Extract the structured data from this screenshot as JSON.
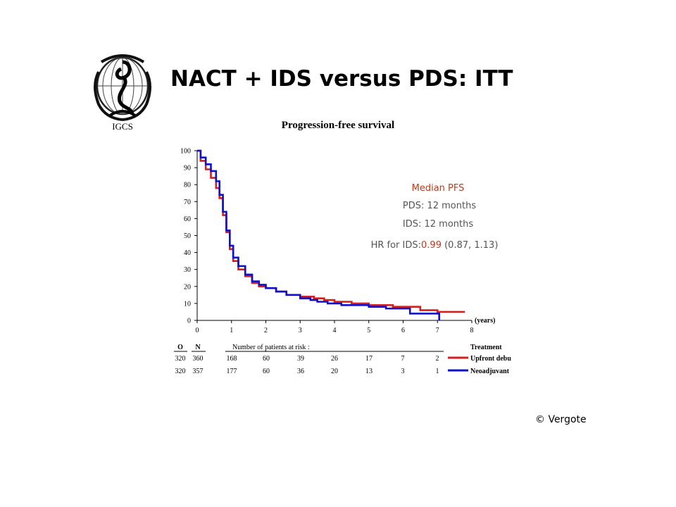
{
  "slide": {
    "title": "NACT + IDS versus PDS: ITT",
    "logo_text": "IGCS",
    "copyright": "© Vergote"
  },
  "colors": {
    "red": "#d41f1f",
    "blue": "#1010c8",
    "annotation_red": "#c0391b",
    "annotation_gray": "#555555"
  },
  "chart_data": {
    "type": "line",
    "title": "Progression-free survival",
    "xlabel": "(years)",
    "ylabel": "",
    "xlim": [
      0,
      8
    ],
    "ylim": [
      0,
      100
    ],
    "x_ticks": [
      "0",
      "1",
      "2",
      "3",
      "4",
      "5",
      "6",
      "7",
      "8"
    ],
    "y_ticks": [
      "0",
      "10",
      "20",
      "30",
      "40",
      "50",
      "60",
      "70",
      "80",
      "90",
      "100"
    ],
    "series": [
      {
        "name": "Upfront debu",
        "color": "#d41f1f",
        "points": [
          [
            0,
            100
          ],
          [
            0.1,
            94
          ],
          [
            0.25,
            89
          ],
          [
            0.4,
            84
          ],
          [
            0.55,
            78
          ],
          [
            0.65,
            72
          ],
          [
            0.75,
            62
          ],
          [
            0.85,
            52
          ],
          [
            0.95,
            42
          ],
          [
            1.05,
            35
          ],
          [
            1.2,
            30
          ],
          [
            1.4,
            26
          ],
          [
            1.6,
            22
          ],
          [
            1.8,
            20
          ],
          [
            2.0,
            19
          ],
          [
            2.3,
            17
          ],
          [
            2.6,
            15
          ],
          [
            3.0,
            14
          ],
          [
            3.3,
            14
          ],
          [
            3.4,
            13
          ],
          [
            3.7,
            12
          ],
          [
            4.0,
            11
          ],
          [
            4.5,
            10
          ],
          [
            5.0,
            9
          ],
          [
            5.7,
            8
          ],
          [
            6.5,
            6
          ],
          [
            7.0,
            5
          ],
          [
            7.5,
            5
          ],
          [
            7.8,
            5
          ]
        ]
      },
      {
        "name": "Neoadjuvant",
        "color": "#1010c8",
        "points": [
          [
            0,
            100
          ],
          [
            0.1,
            96
          ],
          [
            0.25,
            92
          ],
          [
            0.4,
            88
          ],
          [
            0.55,
            82
          ],
          [
            0.65,
            74
          ],
          [
            0.75,
            64
          ],
          [
            0.85,
            53
          ],
          [
            0.95,
            44
          ],
          [
            1.05,
            37
          ],
          [
            1.2,
            32
          ],
          [
            1.4,
            27
          ],
          [
            1.6,
            23
          ],
          [
            1.8,
            21
          ],
          [
            2.0,
            19
          ],
          [
            2.3,
            17
          ],
          [
            2.6,
            15
          ],
          [
            3.0,
            13
          ],
          [
            3.3,
            12
          ],
          [
            3.5,
            11
          ],
          [
            3.8,
            10
          ],
          [
            4.2,
            9
          ],
          [
            4.6,
            9
          ],
          [
            5.0,
            8
          ],
          [
            5.5,
            7
          ],
          [
            6.0,
            7
          ],
          [
            6.2,
            4
          ],
          [
            7.0,
            4
          ],
          [
            7.05,
            0
          ]
        ]
      }
    ],
    "annotation": {
      "heading": "Median PFS",
      "line1": "PDS: 12 months",
      "line2": "IDS: 12 months",
      "hr_prefix": "HR for IDS:",
      "hr_value": "0.99",
      "hr_ci": " (0.87, 1.13)"
    },
    "risk_table": {
      "col_o": "O",
      "col_n": "N",
      "header": "Number of patients at risk :",
      "treatment_label": "Treatment",
      "rows": [
        {
          "o": "320",
          "n": "360",
          "counts": [
            "168",
            "60",
            "39",
            "26",
            "17",
            "7",
            "2"
          ],
          "label": "Upfront debu"
        },
        {
          "o": "320",
          "n": "357",
          "counts": [
            "177",
            "60",
            "36",
            "20",
            "13",
            "3",
            "1"
          ],
          "label": "Neoadjuvant"
        }
      ]
    }
  }
}
